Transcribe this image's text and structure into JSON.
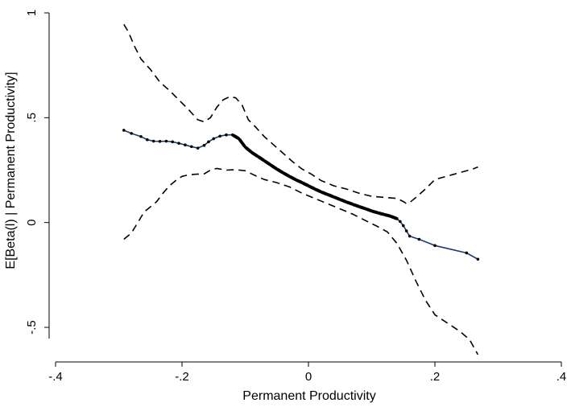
{
  "chart_data": {
    "type": "line",
    "title": "",
    "xlabel": "Permanent Productivity",
    "ylabel": "E[Beta(l) | Permanent Productivity]",
    "xlim": [
      -0.4,
      0.4
    ],
    "ylim": [
      -0.6,
      1.0
    ],
    "x_ticks": [
      {
        "value": -0.4,
        "label": "-.4"
      },
      {
        "value": -0.2,
        "label": "-.2"
      },
      {
        "value": 0,
        "label": "0"
      },
      {
        "value": 0.2,
        "label": ".2"
      },
      {
        "value": 0.4,
        "label": ".4"
      }
    ],
    "y_ticks": [
      {
        "value": -0.5,
        "label": "-.5"
      },
      {
        "value": 0,
        "label": "0"
      },
      {
        "value": 0.5,
        "label": ".5"
      },
      {
        "value": 1,
        "label": "1"
      }
    ],
    "grid": false,
    "legend": "none",
    "colors": {
      "estimate": "#1a3a6b",
      "band": "#000000",
      "markers": "#000000"
    },
    "series": [
      {
        "style": "solid-with-markers",
        "x": [
          -0.292,
          -0.28,
          -0.265,
          -0.255,
          -0.245,
          -0.235,
          -0.225,
          -0.215,
          -0.205,
          -0.195,
          -0.185,
          -0.175,
          -0.165,
          -0.158,
          -0.15,
          -0.14,
          -0.13,
          -0.12,
          -0.11,
          -0.1,
          -0.09,
          -0.08,
          -0.07,
          -0.06,
          -0.05,
          -0.04,
          -0.03,
          -0.02,
          -0.01,
          0.0,
          0.01,
          0.02,
          0.03,
          0.04,
          0.05,
          0.06,
          0.07,
          0.08,
          0.09,
          0.1,
          0.11,
          0.12,
          0.13,
          0.14,
          0.145,
          0.15,
          0.155,
          0.16,
          0.175,
          0.2,
          0.25,
          0.268
        ],
        "y": [
          0.44,
          0.425,
          0.41,
          0.395,
          0.388,
          0.387,
          0.388,
          0.385,
          0.378,
          0.37,
          0.362,
          0.355,
          0.368,
          0.385,
          0.4,
          0.412,
          0.418,
          0.418,
          0.4,
          0.36,
          0.335,
          0.315,
          0.295,
          0.275,
          0.255,
          0.237,
          0.22,
          0.204,
          0.19,
          0.175,
          0.16,
          0.146,
          0.134,
          0.122,
          0.11,
          0.098,
          0.087,
          0.076,
          0.066,
          0.055,
          0.046,
          0.038,
          0.03,
          0.018,
          0.005,
          -0.015,
          -0.04,
          -0.065,
          -0.08,
          -0.11,
          -0.145,
          -0.175
        ]
      },
      {
        "style": "dashed-upper",
        "x": [
          -0.292,
          -0.285,
          -0.275,
          -0.265,
          -0.25,
          -0.235,
          -0.22,
          -0.205,
          -0.19,
          -0.175,
          -0.165,
          -0.155,
          -0.145,
          -0.135,
          -0.125,
          -0.115,
          -0.105,
          -0.095,
          -0.085,
          -0.07,
          -0.055,
          -0.04,
          -0.025,
          -0.01,
          0.005,
          0.02,
          0.04,
          0.06,
          0.08,
          0.1,
          0.12,
          0.14,
          0.15,
          0.155,
          0.16,
          0.17,
          0.185,
          0.2,
          0.23,
          0.26,
          0.268
        ],
        "y": [
          0.945,
          0.91,
          0.84,
          0.78,
          0.73,
          0.67,
          0.63,
          0.585,
          0.54,
          0.49,
          0.48,
          0.5,
          0.55,
          0.585,
          0.6,
          0.595,
          0.56,
          0.49,
          0.46,
          0.41,
          0.37,
          0.33,
          0.29,
          0.255,
          0.23,
          0.2,
          0.175,
          0.16,
          0.14,
          0.125,
          0.12,
          0.115,
          0.1,
          0.09,
          0.095,
          0.12,
          0.16,
          0.205,
          0.23,
          0.255,
          0.265
        ]
      },
      {
        "style": "dashed-lower",
        "x": [
          -0.292,
          -0.28,
          -0.27,
          -0.26,
          -0.25,
          -0.24,
          -0.23,
          -0.22,
          -0.21,
          -0.2,
          -0.19,
          -0.18,
          -0.165,
          -0.155,
          -0.145,
          -0.13,
          -0.115,
          -0.1,
          -0.085,
          -0.07,
          -0.05,
          -0.03,
          -0.01,
          0.01,
          0.03,
          0.05,
          0.07,
          0.09,
          0.11,
          0.125,
          0.14,
          0.155,
          0.17,
          0.185,
          0.2,
          0.22,
          0.24,
          0.255,
          0.268
        ],
        "y": [
          -0.08,
          -0.05,
          0.0,
          0.05,
          0.075,
          0.1,
          0.14,
          0.175,
          0.2,
          0.22,
          0.227,
          0.23,
          0.232,
          0.25,
          0.258,
          0.25,
          0.252,
          0.247,
          0.225,
          0.205,
          0.19,
          0.17,
          0.14,
          0.115,
          0.09,
          0.065,
          0.04,
          0.01,
          -0.02,
          -0.045,
          -0.1,
          -0.18,
          -0.28,
          -0.37,
          -0.44,
          -0.48,
          -0.52,
          -0.56,
          -0.63
        ]
      }
    ]
  }
}
